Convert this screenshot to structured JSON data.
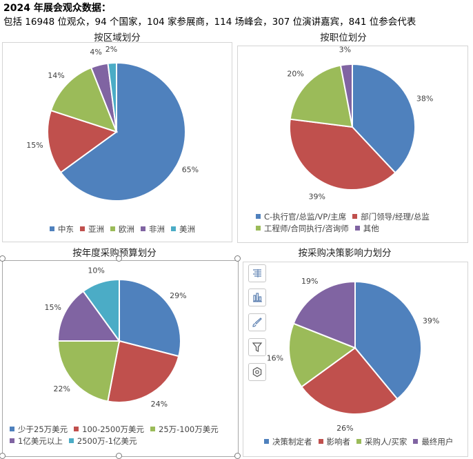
{
  "header": {
    "title": "2024 年展会观众数据：",
    "subtitle": "包括 16948 位观众，94 个国家，104 家参展商，114 场峰会，307 位演讲嘉宾，841 位参会代表"
  },
  "colors": {
    "blue": "#4f81bd",
    "red": "#c0504d",
    "green": "#9bbb59",
    "purple": "#8064a2",
    "aqua": "#4bacc6"
  },
  "chart_data": [
    {
      "type": "pie",
      "title": "按区域划分",
      "categories": [
        "中东",
        "亚洲",
        "欧洲",
        "非洲",
        "美洲"
      ],
      "values": [
        65,
        15,
        14,
        4,
        2
      ],
      "labels": [
        "65%",
        "15%",
        "14%",
        "4%",
        "2%"
      ],
      "colors": [
        "#4f81bd",
        "#c0504d",
        "#9bbb59",
        "#8064a2",
        "#4bacc6"
      ],
      "legend": "bottom"
    },
    {
      "type": "pie",
      "title": "按职位划分",
      "categories": [
        "C-执行官/总监/VP/主席",
        "部门领导/经理/总监",
        "工程师/合同执行/咨询师",
        "其他"
      ],
      "values": [
        38,
        39,
        20,
        3
      ],
      "labels": [
        "38%",
        "39%",
        "20%",
        "3%"
      ],
      "colors": [
        "#4f81bd",
        "#c0504d",
        "#9bbb59",
        "#8064a2"
      ],
      "legend": "bottom"
    },
    {
      "type": "pie",
      "title": "按年度采购预算划分",
      "categories": [
        "少于25万美元",
        "100-2500万美元",
        "25万-100万美元",
        "1亿美元以上",
        "2500万-1亿美元"
      ],
      "values": [
        29,
        24,
        22,
        15,
        10
      ],
      "labels": [
        "29%",
        "24%",
        "22%",
        "15%",
        "10%"
      ],
      "colors": [
        "#4f81bd",
        "#c0504d",
        "#9bbb59",
        "#8064a2",
        "#4bacc6"
      ],
      "legend": "bottom"
    },
    {
      "type": "pie",
      "title": "按采购决策影响力划分",
      "categories": [
        "决策制定者",
        "影响者",
        "采购人/买家",
        "最终用户"
      ],
      "values": [
        39,
        26,
        16,
        19
      ],
      "labels": [
        "39%",
        "26%",
        "16%",
        "19%"
      ],
      "colors": [
        "#4f81bd",
        "#c0504d",
        "#9bbb59",
        "#8064a2"
      ],
      "legend": "bottom"
    }
  ],
  "chart_tools": [
    {
      "name": "chart-elements-icon"
    },
    {
      "name": "chart-styles-icon"
    },
    {
      "name": "chart-brush-icon"
    },
    {
      "name": "chart-filter-icon"
    },
    {
      "name": "chart-settings-icon"
    }
  ]
}
